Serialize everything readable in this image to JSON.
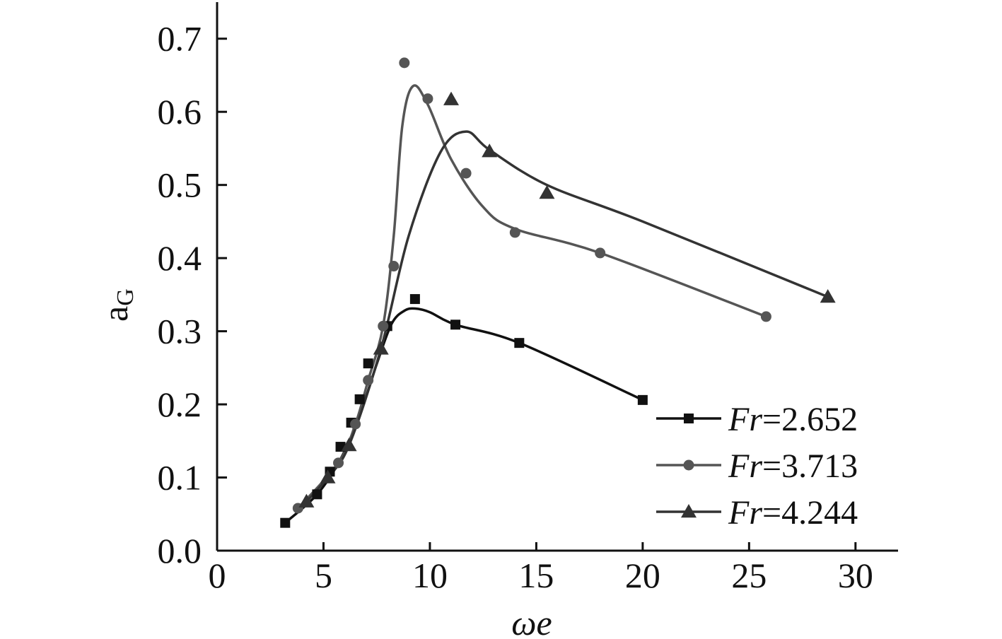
{
  "chart_data": {
    "type": "line",
    "xlabel": "ωe",
    "ylabel_main": "a",
    "ylabel_sub": "G",
    "xlim": [
      0,
      32
    ],
    "ylim": [
      0,
      0.75
    ],
    "xticks": [
      0,
      5,
      10,
      15,
      20,
      25,
      30
    ],
    "xtick_labels": [
      "0",
      "5",
      "10",
      "15",
      "20",
      "25",
      "30"
    ],
    "yticks": [
      0.0,
      0.1,
      0.2,
      0.3,
      0.4,
      0.5,
      0.6,
      0.7
    ],
    "ytick_labels": [
      "0.0",
      "0.1",
      "0.2",
      "0.3",
      "0.4",
      "0.5",
      "0.6",
      "0.7"
    ],
    "grid": false,
    "legend_position": "bottom-right",
    "series": [
      {
        "name": "Fr=2.652",
        "name_prefix": "Fr",
        "name_value": "=2.652",
        "marker": "square",
        "color": "#111111",
        "points": [
          [
            3.2,
            0.038
          ],
          [
            4.7,
            0.077
          ],
          [
            5.3,
            0.108
          ],
          [
            5.8,
            0.142
          ],
          [
            6.3,
            0.175
          ],
          [
            6.7,
            0.207
          ],
          [
            7.1,
            0.256
          ],
          [
            8.0,
            0.307
          ],
          [
            9.3,
            0.344
          ],
          [
            11.2,
            0.309
          ],
          [
            14.2,
            0.284
          ],
          [
            20.0,
            0.206
          ]
        ],
        "curve": [
          [
            3.2,
            0.038
          ],
          [
            4.7,
            0.077
          ],
          [
            5.8,
            0.125
          ],
          [
            6.7,
            0.185
          ],
          [
            7.5,
            0.255
          ],
          [
            8.2,
            0.31
          ],
          [
            8.8,
            0.328
          ],
          [
            9.3,
            0.331
          ],
          [
            10.0,
            0.326
          ],
          [
            11.2,
            0.309
          ],
          [
            14.2,
            0.284
          ],
          [
            20.0,
            0.206
          ]
        ]
      },
      {
        "name": "Fr=3.713",
        "name_prefix": "Fr",
        "name_value": "=3.713",
        "marker": "circle",
        "color": "#555555",
        "points": [
          [
            3.8,
            0.058
          ],
          [
            5.7,
            0.12
          ],
          [
            6.5,
            0.173
          ],
          [
            7.1,
            0.233
          ],
          [
            7.8,
            0.307
          ],
          [
            8.3,
            0.389
          ],
          [
            8.8,
            0.667
          ],
          [
            9.9,
            0.618
          ],
          [
            11.7,
            0.516
          ],
          [
            14.0,
            0.435
          ],
          [
            18.0,
            0.407
          ],
          [
            25.8,
            0.32
          ]
        ],
        "curve": [
          [
            3.8,
            0.058
          ],
          [
            5.7,
            0.12
          ],
          [
            6.5,
            0.173
          ],
          [
            7.1,
            0.233
          ],
          [
            7.8,
            0.307
          ],
          [
            8.3,
            0.43
          ],
          [
            8.7,
            0.58
          ],
          [
            9.2,
            0.635
          ],
          [
            9.9,
            0.61
          ],
          [
            11.0,
            0.535
          ],
          [
            12.5,
            0.47
          ],
          [
            14.0,
            0.44
          ],
          [
            18.0,
            0.407
          ],
          [
            25.8,
            0.32
          ]
        ]
      },
      {
        "name": "Fr=4.244",
        "name_prefix": "Fr",
        "name_value": "=4.244",
        "marker": "triangle",
        "color": "#333333",
        "points": [
          [
            4.2,
            0.067
          ],
          [
            5.2,
            0.1
          ],
          [
            6.2,
            0.144
          ],
          [
            7.7,
            0.276
          ],
          [
            11.0,
            0.617
          ],
          [
            12.8,
            0.546
          ],
          [
            15.5,
            0.489
          ],
          [
            28.7,
            0.347
          ]
        ],
        "curve": [
          [
            4.2,
            0.067
          ],
          [
            5.2,
            0.1
          ],
          [
            6.2,
            0.144
          ],
          [
            7.7,
            0.276
          ],
          [
            9.0,
            0.43
          ],
          [
            10.5,
            0.545
          ],
          [
            11.7,
            0.573
          ],
          [
            12.8,
            0.548
          ],
          [
            15.5,
            0.5
          ],
          [
            20.0,
            0.45
          ],
          [
            28.7,
            0.347
          ]
        ]
      }
    ]
  }
}
